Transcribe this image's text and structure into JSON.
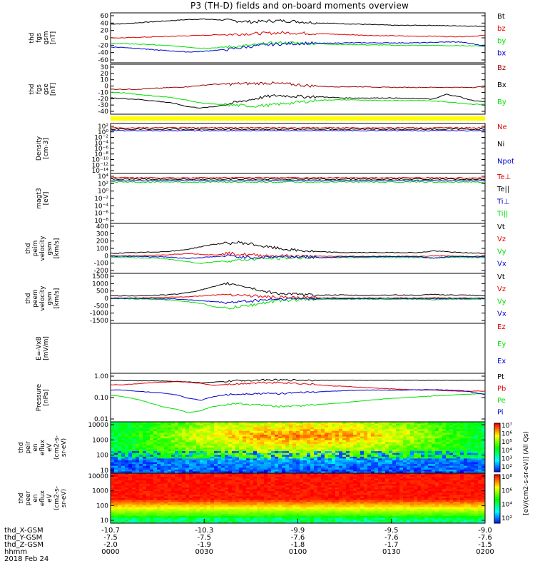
{
  "title": "P3 (TH-D) fields and on-board moments overview",
  "colors": {
    "black": "#000000",
    "red": "#e00000",
    "green": "#00e000",
    "blue": "#0000d0",
    "darkred": "#9b0000",
    "yellow": "#ffff00"
  },
  "chart_data": [
    {
      "type": "line",
      "ylabel": [
        "thd",
        "fgs",
        "gsm",
        "[nT]"
      ],
      "ylim": [
        -60,
        60
      ],
      "ticks": [
        "60",
        "40",
        "20",
        "0",
        "-20",
        "-40",
        "-60"
      ],
      "series": [
        {
          "name": "Bt",
          "color": "black",
          "values": [
            33,
            34,
            36,
            38,
            40,
            42,
            44,
            45,
            44,
            42,
            40,
            38,
            40,
            41,
            40,
            38,
            36,
            35,
            34,
            33,
            32,
            31,
            30,
            30,
            30,
            30,
            29,
            29,
            28,
            28
          ]
        },
        {
          "name": "bz",
          "color": "red",
          "values": [
            0,
            0,
            1,
            2,
            3,
            4,
            5,
            6,
            7,
            8,
            9,
            10,
            11,
            12,
            12,
            11,
            10,
            9,
            8,
            7,
            6,
            5,
            5,
            4,
            4,
            4,
            3,
            3,
            4,
            6
          ]
        },
        {
          "name": "by",
          "color": "green",
          "values": [
            -13,
            -14,
            -15,
            -16,
            -18,
            -20,
            -22,
            -25,
            -24,
            -22,
            -20,
            -18,
            -14,
            -12,
            -12,
            -13,
            -14,
            -15,
            -16,
            -16,
            -17,
            -17,
            -18,
            -18,
            -18,
            -18,
            -19,
            -19,
            -19,
            -20
          ]
        },
        {
          "name": "bx",
          "color": "blue",
          "values": [
            -22,
            -23,
            -25,
            -28,
            -30,
            -32,
            -34,
            -33,
            -30,
            -28,
            -24,
            -20,
            -17,
            -15,
            -14,
            -13,
            -13,
            -13,
            -12,
            -12,
            -12,
            -12,
            -12,
            -12,
            -12,
            -11,
            -10,
            -10,
            -14,
            -20
          ]
        }
      ]
    },
    {
      "type": "line",
      "ylabel": [
        "thd",
        "fgs",
        "gse",
        "[nT]"
      ],
      "ylim": [
        -40,
        40
      ],
      "ticks": [
        "30",
        "20",
        "10",
        "0",
        "-10",
        "-20",
        "-30",
        "-40"
      ],
      "series": [
        {
          "name": "Bz",
          "color": "darkred",
          "values": [
            0,
            0,
            0,
            1,
            2,
            3,
            4,
            6,
            8,
            8,
            9,
            9,
            10,
            9,
            8,
            6,
            5,
            4,
            4,
            4,
            4,
            3,
            3,
            3,
            3,
            3,
            3,
            3,
            3,
            4
          ]
        },
        {
          "name": "Bx",
          "color": "black",
          "values": [
            -14,
            -15,
            -16,
            -18,
            -20,
            -23,
            -28,
            -30,
            -28,
            -24,
            -20,
            -16,
            -12,
            -10,
            -11,
            -12,
            -12,
            -13,
            -14,
            -14,
            -14,
            -14,
            -14,
            -15,
            -15,
            -16,
            -8,
            -12,
            -18,
            -20
          ]
        },
        {
          "name": "By",
          "color": "green",
          "values": [
            -5,
            -6,
            -8,
            -10,
            -12,
            -14,
            -18,
            -22,
            -24,
            -25,
            -26,
            -27,
            -26,
            -24,
            -22,
            -20,
            -18,
            -17,
            -17,
            -17,
            -18,
            -18,
            -18,
            -18,
            -18,
            -19,
            -20,
            -22,
            -24,
            -24
          ]
        }
      ]
    },
    {
      "type": "line",
      "ylabel": [
        "Density",
        "[cm-3]"
      ],
      "log": true,
      "ticks": [
        "10²",
        "10⁰",
        "10⁻²",
        "10⁻⁴",
        "10⁻⁶",
        "10⁻⁸",
        "10⁻¹⁰",
        "10⁻¹²",
        "10⁻¹⁴"
      ],
      "series": [
        {
          "name": "Ne",
          "color": "red",
          "values": [
            1.0
          ]
        },
        {
          "name": "Ni",
          "color": "black",
          "values": [
            1.2
          ]
        },
        {
          "name": "Npot",
          "color": "blue",
          "values": [
            1.4
          ]
        }
      ]
    },
    {
      "type": "line",
      "ylabel": [
        "magt3",
        "[eV]"
      ],
      "log": true,
      "ticks": [
        "10⁴",
        "10²",
        "10⁰",
        "10⁻²",
        "10⁻⁴",
        "10⁻⁶",
        "10⁻⁸"
      ],
      "series": [
        {
          "name": "Te⊥",
          "color": "red",
          "values": [
            1000
          ]
        },
        {
          "name": "Te||",
          "color": "black",
          "values": [
            1200
          ]
        },
        {
          "name": "Ti⊥",
          "color": "blue",
          "values": [
            3000
          ]
        },
        {
          "name": "Ti||",
          "color": "green",
          "values": [
            3500
          ]
        }
      ]
    },
    {
      "type": "line",
      "ylabel": [
        "thd",
        "peim",
        "velocity",
        "gsm",
        "[km/s]"
      ],
      "ylim": [
        -200,
        400
      ],
      "ticks": [
        "400",
        "300",
        "200",
        "100",
        "0",
        "-100",
        "-200"
      ],
      "series": [
        {
          "name": "Vt",
          "color": "black",
          "values": [
            40,
            45,
            50,
            55,
            60,
            70,
            90,
            120,
            150,
            160,
            170,
            150,
            120,
            100,
            80,
            70,
            60,
            55,
            50,
            50,
            50,
            50,
            50,
            50,
            50,
            70,
            60,
            50,
            45,
            40
          ]
        },
        {
          "name": "Vz",
          "color": "red",
          "values": [
            10,
            10,
            12,
            15,
            20,
            30,
            40,
            30,
            20,
            40,
            30,
            20,
            15,
            10,
            10,
            5,
            5,
            5,
            5,
            5,
            5,
            5,
            5,
            5,
            5,
            10,
            10,
            5,
            5,
            5
          ]
        },
        {
          "name": "Vy",
          "color": "green",
          "values": [
            -10,
            -10,
            -12,
            -15,
            -20,
            -40,
            -60,
            -80,
            -60,
            -50,
            -40,
            -30,
            -20,
            -20,
            -15,
            -10,
            -10,
            -10,
            -10,
            -10,
            -10,
            -10,
            -10,
            -10,
            -10,
            -15,
            -10,
            -10,
            -10,
            -10
          ]
        },
        {
          "name": "Vx",
          "color": "blue",
          "values": [
            5,
            5,
            5,
            0,
            0,
            -10,
            -20,
            -10,
            0,
            10,
            0,
            -10,
            -5,
            0,
            0,
            0,
            -10,
            -10,
            0,
            0,
            0,
            0,
            0,
            0,
            0,
            -20,
            0,
            0,
            0,
            0
          ]
        }
      ]
    },
    {
      "type": "line",
      "ylabel": [
        "thd",
        "peem",
        "velocity",
        "gsm",
        "[km/s]"
      ],
      "ylim": [
        -1500,
        1500
      ],
      "ticks": [
        "1500",
        "1000",
        "500",
        "0",
        "-500",
        "-1000",
        "-1500"
      ],
      "series": [
        {
          "name": "Vt",
          "color": "black",
          "values": [
            150,
            150,
            160,
            170,
            200,
            250,
            350,
            500,
            700,
            900,
            800,
            600,
            400,
            300,
            250,
            200,
            200,
            200,
            200,
            180,
            180,
            200,
            200,
            200,
            180,
            250,
            200,
            200,
            180,
            150
          ]
        },
        {
          "name": "Vz",
          "color": "red",
          "values": [
            20,
            20,
            30,
            40,
            50,
            80,
            100,
            150,
            200,
            250,
            200,
            150,
            100,
            50,
            40,
            30,
            30,
            30,
            30,
            20,
            20,
            20,
            20,
            20,
            20,
            40,
            30,
            20,
            20,
            20
          ]
        },
        {
          "name": "Vy",
          "color": "green",
          "values": [
            -30,
            -30,
            -40,
            -50,
            -80,
            -120,
            -200,
            -300,
            -500,
            -600,
            -500,
            -400,
            -250,
            -150,
            -100,
            -80,
            -60,
            -60,
            -60,
            -50,
            -50,
            -50,
            -50,
            -50,
            -50,
            -80,
            -60,
            -50,
            -50,
            -40
          ]
        },
        {
          "name": "Vx",
          "color": "blue",
          "values": [
            0,
            0,
            0,
            -10,
            -20,
            -40,
            -80,
            -150,
            -200,
            -250,
            -200,
            -150,
            -80,
            -40,
            -20,
            -10,
            -10,
            -10,
            -10,
            -10,
            -10,
            -10,
            -10,
            -10,
            -10,
            -20,
            -10,
            -10,
            -10,
            -10
          ]
        }
      ]
    },
    {
      "type": "line",
      "ylabel": [
        "E=-VxB",
        "[mV/m]"
      ],
      "ticks": [],
      "series": [
        {
          "name": "Ez",
          "color": "red",
          "values": []
        },
        {
          "name": "Ey",
          "color": "green",
          "values": []
        },
        {
          "name": "Ex",
          "color": "blue",
          "values": []
        }
      ]
    },
    {
      "type": "line",
      "ylabel": [
        "Pressure",
        "[nPa]"
      ],
      "log": true,
      "ylim": [
        0.01,
        1.0
      ],
      "ticks": [
        "1.00",
        "0.10",
        "0.01"
      ],
      "series": [
        {
          "name": "Pt",
          "color": "black",
          "values": [
            0.72,
            0.72,
            0.7,
            0.7,
            0.68,
            0.66,
            0.62,
            0.56,
            0.6,
            0.66,
            0.72,
            0.74,
            0.76,
            0.76,
            0.76,
            0.75,
            0.74,
            0.74,
            0.74,
            0.74,
            0.74,
            0.74,
            0.74,
            0.74,
            0.74,
            0.74,
            0.74,
            0.74,
            0.74,
            0.74
          ]
        },
        {
          "name": "Pb",
          "color": "red",
          "values": [
            0.45,
            0.45,
            0.5,
            0.56,
            0.6,
            0.62,
            0.6,
            0.52,
            0.42,
            0.48,
            0.5,
            0.55,
            0.58,
            0.58,
            0.55,
            0.5,
            0.45,
            0.4,
            0.38,
            0.35,
            0.32,
            0.3,
            0.28,
            0.26,
            0.25,
            0.25,
            0.23,
            0.22,
            0.22,
            0.22
          ]
        },
        {
          "name": "Pe",
          "color": "green",
          "values": [
            0.14,
            0.12,
            0.09,
            0.06,
            0.04,
            0.03,
            0.02,
            0.025,
            0.04,
            0.05,
            0.055,
            0.05,
            0.045,
            0.04,
            0.042,
            0.045,
            0.05,
            0.055,
            0.06,
            0.07,
            0.08,
            0.09,
            0.1,
            0.11,
            0.12,
            0.13,
            0.14,
            0.15,
            0.16,
            0.17
          ]
        },
        {
          "name": "Pi",
          "color": "blue",
          "values": [
            0.25,
            0.25,
            0.22,
            0.2,
            0.18,
            0.15,
            0.1,
            0.08,
            0.12,
            0.15,
            0.16,
            0.17,
            0.17,
            0.17,
            0.18,
            0.19,
            0.2,
            0.22,
            0.23,
            0.24,
            0.25,
            0.25,
            0.25,
            0.25,
            0.26,
            0.26,
            0.25,
            0.24,
            0.2,
            0.15
          ]
        }
      ]
    },
    {
      "type": "heatmap",
      "ylabel": [
        "thd",
        "peir",
        "en",
        "eflux",
        "eV",
        "(cm2-s-",
        "sr-eV)"
      ],
      "log": true,
      "ticks": [
        "10000",
        "1000",
        "100",
        "10"
      ]
    },
    {
      "type": "heatmap",
      "ylabel": [
        "thd",
        "peer",
        "en",
        "eflux",
        "eV",
        "(cm2-s-",
        "sr-eV)"
      ],
      "log": true,
      "ticks": [
        "10000",
        "1000",
        "100",
        "10"
      ]
    }
  ],
  "colorbar": {
    "label": "[eV/(cm2-s-sr-eV)] (All Qs)",
    "top_ticks": [
      "10⁷",
      "10⁶",
      "10⁵",
      "10⁴",
      "10³",
      "10²"
    ],
    "bottom_ticks": [
      "10⁸",
      "10⁶",
      "10⁴",
      "10²"
    ]
  },
  "x_axis": {
    "ticks": [
      "-10.7",
      "-10.3",
      "-9.9",
      "-9.5",
      "-9.0"
    ],
    "rows": [
      {
        "label": "thd_X-GSM",
        "values": [
          "-10.7",
          "-10.3",
          "-9.9",
          "-9.5",
          "-9.0"
        ]
      },
      {
        "label": "thd_Y-GSM",
        "values": [
          "-7.5",
          "-7.5",
          "-7.6",
          "-7.6",
          "-7.6"
        ]
      },
      {
        "label": "thd_Z-GSM",
        "values": [
          "-2.0",
          "-1.9",
          "-1.8",
          "-1.7",
          "-1.5"
        ]
      },
      {
        "label": "hhmm",
        "values": [
          "0000",
          "0030",
          "0100",
          "0130",
          "0200"
        ]
      }
    ],
    "date": "2018 Feb 24"
  }
}
